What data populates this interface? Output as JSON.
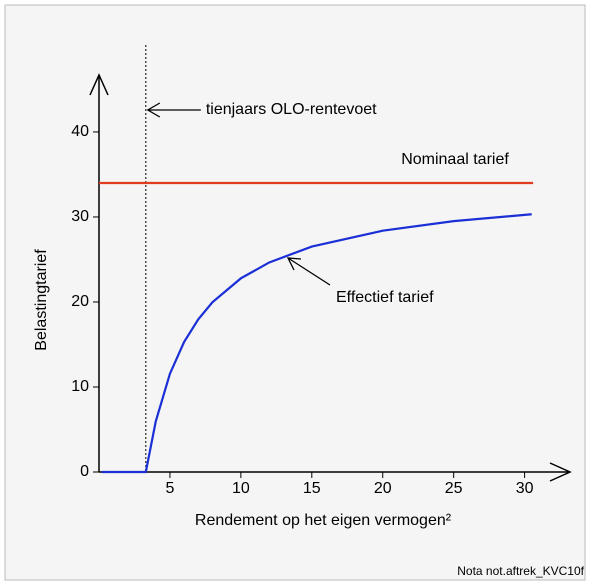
{
  "chart_data": {
    "type": "line",
    "xlabel": "Rendement op het eigen vermogen²",
    "ylabel": "Belastingtarief",
    "footer": "Nota not.aftrek_KVC10f",
    "xlim": [
      0,
      33.2
    ],
    "ylim": [
      0,
      46.7
    ],
    "xticks": [
      5,
      10,
      15,
      20,
      25,
      30
    ],
    "yticks": [
      0,
      10,
      20,
      30,
      40
    ],
    "olo_x": 3.3,
    "series": [
      {
        "name": "Nominaal tarief",
        "color": "#e03c1e",
        "x": [
          0,
          30.6
        ],
        "values": [
          34,
          34
        ]
      },
      {
        "name": "Effectief tarief",
        "color": "#1a2fd6",
        "x": [
          0.2,
          3.3,
          4,
          5,
          6,
          7,
          8,
          10,
          12,
          15,
          20,
          25,
          30.5
        ],
        "values": [
          0,
          0,
          5.95,
          11.56,
          15.3,
          17.97,
          19.98,
          22.78,
          24.65,
          26.52,
          28.39,
          29.51,
          30.32
        ]
      }
    ],
    "annotations": [
      "tienjaars OLO-rentevoet"
    ]
  }
}
